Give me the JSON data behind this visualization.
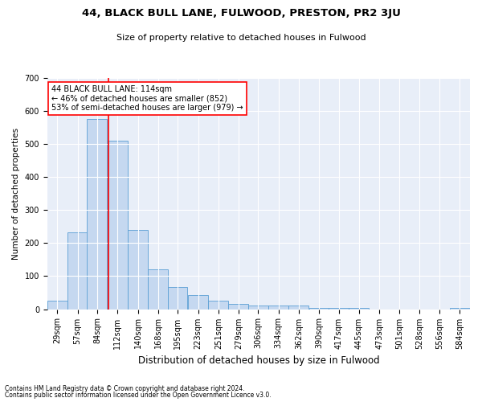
{
  "title": "44, BLACK BULL LANE, FULWOOD, PRESTON, PR2 3JU",
  "subtitle": "Size of property relative to detached houses in Fulwood",
  "xlabel": "Distribution of detached houses by size in Fulwood",
  "ylabel": "Number of detached properties",
  "footnote1": "Contains HM Land Registry data © Crown copyright and database right 2024.",
  "footnote2": "Contains public sector information licensed under the Open Government Licence v3.0.",
  "bar_color": "#c5d8f0",
  "bar_edge_color": "#5a9fd4",
  "background_color": "#e8eef8",
  "grid_color": "#ffffff",
  "red_line_x": 114,
  "annotation_line1": "44 BLACK BULL LANE: 114sqm",
  "annotation_line2": "← 46% of detached houses are smaller (852)",
  "annotation_line3": "53% of semi-detached houses are larger (979) →",
  "categories": [
    "29sqm",
    "57sqm",
    "84sqm",
    "112sqm",
    "140sqm",
    "168sqm",
    "195sqm",
    "223sqm",
    "251sqm",
    "279sqm",
    "306sqm",
    "334sqm",
    "362sqm",
    "390sqm",
    "417sqm",
    "445sqm",
    "473sqm",
    "501sqm",
    "528sqm",
    "556sqm",
    "584sqm"
  ],
  "bin_edges": [
    29,
    57,
    84,
    112,
    140,
    168,
    195,
    223,
    251,
    279,
    306,
    334,
    362,
    390,
    417,
    445,
    473,
    501,
    528,
    556,
    584
  ],
  "bin_width": 28,
  "values": [
    25,
    232,
    575,
    510,
    240,
    120,
    68,
    42,
    25,
    15,
    10,
    10,
    10,
    5,
    5,
    5,
    0,
    0,
    0,
    0,
    5
  ],
  "ylim": [
    0,
    700
  ],
  "yticks": [
    0,
    100,
    200,
    300,
    400,
    500,
    600,
    700
  ],
  "title_fontsize": 9.5,
  "subtitle_fontsize": 8,
  "xlabel_fontsize": 8.5,
  "ylabel_fontsize": 7.5,
  "tick_fontsize": 7,
  "annotation_fontsize": 7,
  "footnote_fontsize": 5.5
}
